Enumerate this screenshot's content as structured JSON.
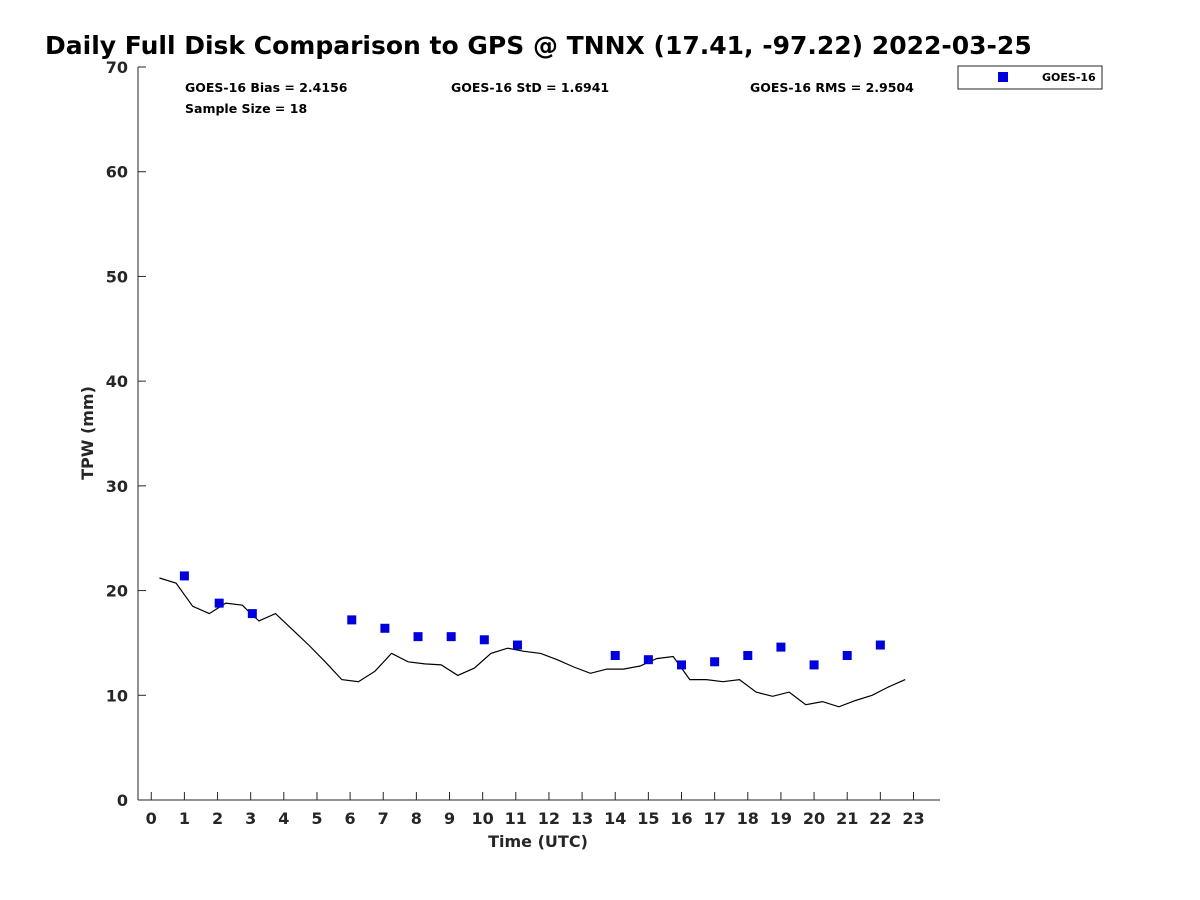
{
  "chart_data": {
    "type": "scatter",
    "title": "Daily Full Disk Comparison to GPS @ TNNX (17.41, -97.22) 2022-03-25",
    "xlabel": "Time (UTC)",
    "ylabel": "TPW (mm)",
    "xlim": [
      -0.4,
      23.8
    ],
    "ylim": [
      0,
      70
    ],
    "xticks": [
      0,
      1,
      2,
      3,
      4,
      5,
      6,
      7,
      8,
      9,
      10,
      11,
      12,
      13,
      14,
      15,
      16,
      17,
      18,
      19,
      20,
      21,
      22,
      23
    ],
    "yticks": [
      0,
      10,
      20,
      30,
      40,
      50,
      60,
      70
    ],
    "grid": false,
    "legend_position": "outside-top-right",
    "stats": {
      "bias": "GOES-16 Bias = 2.4156",
      "std": "GOES-16 StD = 1.6941",
      "rms": "GOES-16 RMS = 2.9504",
      "sample": "Sample Size = 18"
    },
    "series": [
      {
        "name": "GOES-16",
        "kind": "marker",
        "color": "#0000dd",
        "points": [
          [
            1.0,
            21.4
          ],
          [
            2.05,
            18.8
          ],
          [
            3.05,
            17.8
          ],
          [
            6.05,
            17.2
          ],
          [
            7.05,
            16.4
          ],
          [
            8.05,
            15.6
          ],
          [
            9.05,
            15.6
          ],
          [
            10.05,
            15.3
          ],
          [
            11.05,
            14.8
          ],
          [
            14.0,
            13.8
          ],
          [
            15.0,
            13.4
          ],
          [
            16.0,
            12.9
          ],
          [
            17.0,
            13.2
          ],
          [
            18.0,
            13.8
          ],
          [
            19.0,
            14.6
          ],
          [
            20.0,
            12.9
          ],
          [
            21.0,
            13.8
          ],
          [
            22.0,
            14.8
          ]
        ]
      },
      {
        "kind": "line",
        "color": "#000000",
        "points": [
          [
            0.25,
            21.2
          ],
          [
            0.75,
            20.7
          ],
          [
            1.25,
            18.5
          ],
          [
            1.75,
            17.8
          ],
          [
            2.25,
            18.8
          ],
          [
            2.75,
            18.6
          ],
          [
            3.0,
            17.8
          ],
          [
            3.25,
            17.1
          ],
          [
            3.75,
            17.8
          ],
          [
            4.25,
            16.3
          ],
          [
            4.75,
            14.8
          ],
          [
            5.25,
            13.2
          ],
          [
            5.75,
            11.5
          ],
          [
            6.25,
            11.3
          ],
          [
            6.75,
            12.3
          ],
          [
            7.25,
            14.0
          ],
          [
            7.75,
            13.2
          ],
          [
            8.25,
            13.0
          ],
          [
            8.75,
            12.9
          ],
          [
            9.25,
            11.9
          ],
          [
            9.75,
            12.6
          ],
          [
            10.25,
            14.0
          ],
          [
            10.75,
            14.5
          ],
          [
            11.25,
            14.2
          ],
          [
            11.75,
            14.0
          ],
          [
            12.25,
            13.4
          ],
          [
            12.75,
            12.7
          ],
          [
            13.25,
            12.1
          ],
          [
            13.75,
            12.5
          ],
          [
            14.25,
            12.5
          ],
          [
            14.75,
            12.8
          ],
          [
            15.25,
            13.5
          ],
          [
            15.75,
            13.7
          ],
          [
            16.25,
            11.5
          ],
          [
            16.75,
            11.5
          ],
          [
            17.25,
            11.3
          ],
          [
            17.75,
            11.5
          ],
          [
            18.25,
            10.3
          ],
          [
            18.75,
            9.9
          ],
          [
            19.25,
            10.3
          ],
          [
            19.75,
            9.1
          ],
          [
            20.25,
            9.4
          ],
          [
            20.75,
            8.9
          ],
          [
            21.25,
            9.5
          ],
          [
            21.75,
            10.0
          ],
          [
            22.25,
            10.8
          ],
          [
            22.75,
            11.5
          ]
        ]
      }
    ]
  }
}
